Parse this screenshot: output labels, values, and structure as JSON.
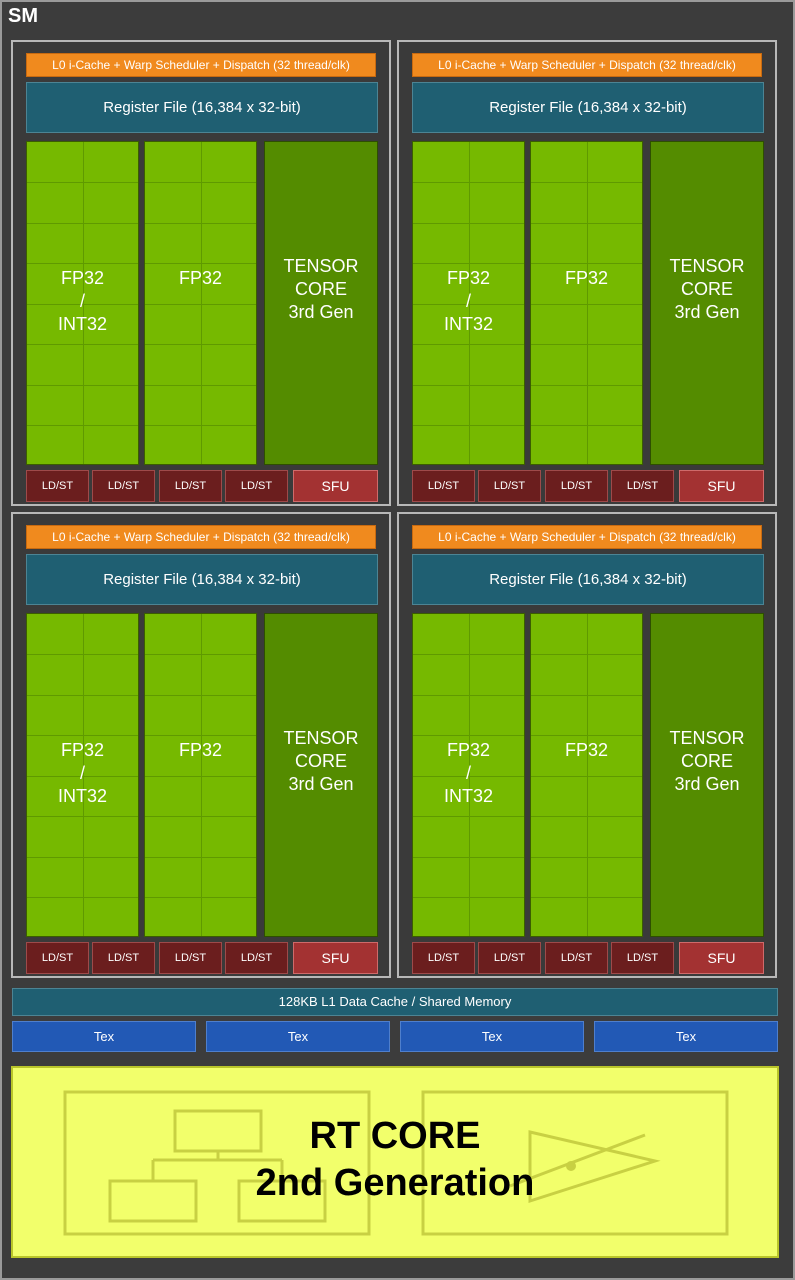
{
  "sm_label": "SM",
  "quadrant": {
    "dispatch": "L0 i-Cache + Warp Scheduler + Dispatch (32 thread/clk)",
    "register_file": "Register File (16,384 x 32-bit)",
    "fp32_int32": [
      "FP32",
      "/",
      "INT32"
    ],
    "fp32": "FP32",
    "tensor": [
      "TENSOR",
      "CORE",
      "3rd Gen"
    ],
    "ldst": "LD/ST",
    "sfu": "SFU"
  },
  "l1_cache": "128KB L1 Data Cache / Shared Memory",
  "tex": [
    "Tex",
    "Tex",
    "Tex",
    "Tex"
  ],
  "rt_core": [
    "RT CORE",
    "2nd Generation"
  ],
  "colors": {
    "fp_green": "#76b900",
    "tensor_green": "#548c00",
    "dispatch_orange": "#f08a1e",
    "register_teal": "#1f5f72",
    "ldst_red": "#6b1e1e",
    "sfu_red": "#a33232",
    "tex_blue": "#2259b5",
    "rt_yellow": "#f2ff6b"
  }
}
